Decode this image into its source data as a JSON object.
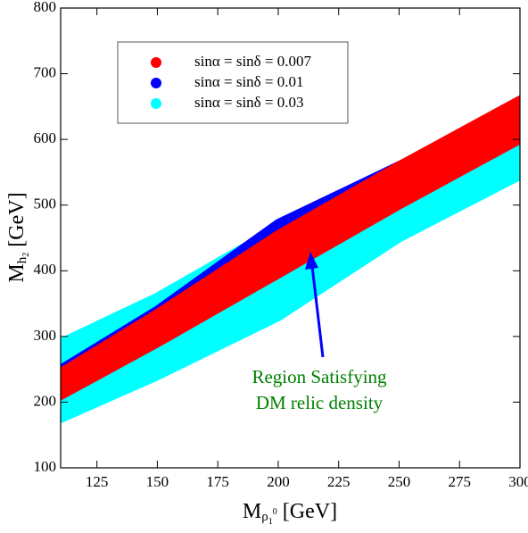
{
  "chart_data": {
    "type": "band",
    "x_label": [
      "M",
      "ρ",
      "1",
      "0",
      " [GeV]"
    ],
    "y_label": [
      "M",
      "h",
      "2",
      " [GeV]"
    ],
    "xlim": [
      110,
      300
    ],
    "xticks": [
      125,
      150,
      175,
      200,
      225,
      250,
      275,
      300
    ],
    "ylim": [
      100,
      800
    ],
    "yticks": [
      100,
      200,
      300,
      400,
      500,
      600,
      700,
      800
    ],
    "series": [
      {
        "name": "sinα = sinδ = 0.03",
        "color": "#00ffff",
        "x": [
          110,
          150,
          200,
          250,
          300
        ],
        "high": [
          290,
          360,
          465,
          555,
          640
        ],
        "low": [
          175,
          240,
          330,
          450,
          545
        ]
      },
      {
        "name": "sinα = sinδ = 0.01",
        "color": "#0000ff",
        "x": [
          110,
          150,
          200,
          268,
          290
        ],
        "high": [
          250,
          340,
          472,
          592,
          632
        ],
        "low": [
          215,
          295,
          395,
          540,
          580
        ]
      },
      {
        "name": "sinα = sinδ = 0.007",
        "color": "#ff0000",
        "x": [
          110,
          150,
          200,
          250,
          300
        ],
        "high": [
          245,
          335,
          455,
          560,
          660
        ],
        "low": [
          210,
          290,
          395,
          500,
          600
        ]
      }
    ],
    "legend_order": [
      2,
      1,
      0
    ],
    "annotation": [
      "Region Satisfying",
      "DM relic density"
    ],
    "annotation_color": "#008000",
    "arrow_color": "#0000ff"
  }
}
